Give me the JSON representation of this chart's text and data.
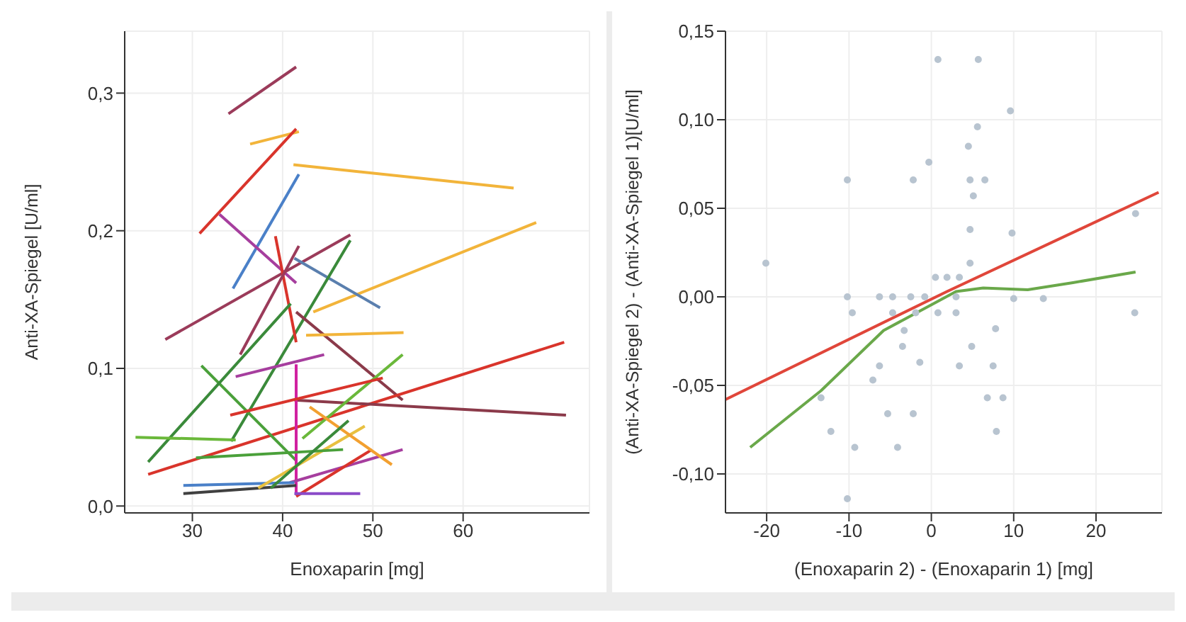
{
  "chart_data": [
    {
      "type": "line",
      "xlabel": "Enoxaparin [mg]",
      "ylabel": "Anti-XA-Spiegel [U/ml]",
      "xlim": [
        22.5,
        74
      ],
      "xticks": [
        30,
        40,
        50,
        60
      ],
      "ylim": [
        -0.005,
        0.345
      ],
      "yticks": [
        {
          "value": 0,
          "label": "0,0"
        },
        {
          "value": 0.1,
          "label": "0,1"
        },
        {
          "value": 0.2,
          "label": "0,2"
        },
        {
          "value": 0.3,
          "label": "0,3"
        }
      ],
      "grid": true,
      "series": [
        {
          "color": "#9b3b5a",
          "x": [
            34.0,
            41.5
          ],
          "values": [
            0.285,
            0.319
          ]
        },
        {
          "color": "#f2b43a",
          "x": [
            36.4,
            41.8
          ],
          "values": [
            0.263,
            0.272
          ]
        },
        {
          "color": "#d9342b",
          "x": [
            30.8,
            41.5
          ],
          "values": [
            0.198,
            0.274
          ]
        },
        {
          "color": "#f2b43a",
          "x": [
            41.2,
            65.6
          ],
          "values": [
            0.248,
            0.231
          ]
        },
        {
          "color": "#4a80c8",
          "x": [
            34.5,
            41.8
          ],
          "values": [
            0.158,
            0.241
          ]
        },
        {
          "color": "#a63e9e",
          "x": [
            33.0,
            41.5
          ],
          "values": [
            0.212,
            0.162
          ]
        },
        {
          "color": "#9b3b5a",
          "x": [
            27.0,
            47.5
          ],
          "values": [
            0.121,
            0.197
          ]
        },
        {
          "color": "#f2b43a",
          "x": [
            43.4,
            68.1
          ],
          "values": [
            0.141,
            0.206
          ]
        },
        {
          "color": "#5a7fae",
          "x": [
            41.3,
            50.8
          ],
          "values": [
            0.18,
            0.144
          ]
        },
        {
          "color": "#3a8a3a",
          "x": [
            34.3,
            47.5
          ],
          "values": [
            0.047,
            0.193
          ]
        },
        {
          "color": "#d9342b",
          "x": [
            39.2,
            41.5
          ],
          "values": [
            0.196,
            0.119
          ]
        },
        {
          "color": "#9b3b5a",
          "x": [
            35.3,
            41.8
          ],
          "values": [
            0.11,
            0.189
          ]
        },
        {
          "color": "#8b3a4a",
          "x": [
            41.5,
            53.3
          ],
          "values": [
            0.141,
            0.077
          ]
        },
        {
          "color": "#d9342b",
          "x": [
            25.1,
            71.2
          ],
          "values": [
            0.023,
            0.119
          ]
        },
        {
          "color": "#8b3a4a",
          "x": [
            41.3,
            71.4
          ],
          "values": [
            0.077,
            0.066
          ]
        },
        {
          "color": "#4aa03a",
          "x": [
            31.0,
            41.5
          ],
          "values": [
            0.102,
            0.033
          ]
        },
        {
          "color": "#f2b43a",
          "x": [
            42.6,
            53.4
          ],
          "values": [
            0.124,
            0.126
          ]
        },
        {
          "color": "#3a8a3a",
          "x": [
            25.1,
            40.9
          ],
          "values": [
            0.032,
            0.147
          ]
        },
        {
          "color": "#6ab83a",
          "x": [
            42.2,
            53.3
          ],
          "values": [
            0.049,
            0.11
          ]
        },
        {
          "color": "#6ab83a",
          "x": [
            23.7,
            34.8
          ],
          "values": [
            0.05,
            0.048
          ]
        },
        {
          "color": "#a63e9e",
          "x": [
            34.8,
            44.6
          ],
          "values": [
            0.094,
            0.11
          ]
        },
        {
          "color": "#d020a0",
          "x": [
            41.5,
            41.5
          ],
          "values": [
            0.103,
            0.008
          ]
        },
        {
          "color": "#a63e9e",
          "x": [
            40.8,
            53.3
          ],
          "values": [
            0.017,
            0.041
          ]
        },
        {
          "color": "#d9342b",
          "x": [
            41.5,
            49.9
          ],
          "values": [
            0.007,
            0.041
          ]
        },
        {
          "color": "#404040",
          "x": [
            29.0,
            41.5
          ],
          "values": [
            0.009,
            0.015
          ]
        },
        {
          "color": "#4a80c8",
          "x": [
            29.0,
            41.3
          ],
          "values": [
            0.015,
            0.017
          ]
        },
        {
          "color": "#8a4ac8",
          "x": [
            41.3,
            48.6
          ],
          "values": [
            0.009,
            0.009
          ]
        },
        {
          "color": "#e8c040",
          "x": [
            37.3,
            49.1
          ],
          "values": [
            0.013,
            0.058
          ]
        },
        {
          "color": "#4aa03a",
          "x": [
            30.4,
            46.7
          ],
          "values": [
            0.035,
            0.041
          ]
        },
        {
          "color": "#d9342b",
          "x": [
            34.2,
            51.1
          ],
          "values": [
            0.066,
            0.093
          ]
        },
        {
          "color": "#f2a030",
          "x": [
            43.0,
            52.1
          ],
          "values": [
            0.072,
            0.03
          ]
        },
        {
          "color": "#3a8a3a",
          "x": [
            38.7,
            47.3
          ],
          "values": [
            0.013,
            0.062
          ]
        }
      ]
    },
    {
      "type": "scatter",
      "xlabel": "(Enoxaparin 2) - (Enoxaparin 1) [mg]",
      "ylabel": "(Anti-XA-Spiegel 2) - (Anti-XA-Spiegel 1)[U/ml]",
      "xlim": [
        -25,
        28
      ],
      "xticks": [
        -20,
        -10,
        0,
        10,
        20
      ],
      "ylim": [
        -0.122,
        0.15
      ],
      "yticks": [
        {
          "value": -0.1,
          "label": "-0,10"
        },
        {
          "value": -0.05,
          "label": "-0,05"
        },
        {
          "value": 0,
          "label": "0,00"
        },
        {
          "value": 0.05,
          "label": "0,05"
        },
        {
          "value": 0.1,
          "label": "0,10"
        },
        {
          "value": 0.15,
          "label": "0,15"
        }
      ],
      "grid": true,
      "series": [
        {
          "color": "#b8c4d0",
          "x": [
            -20.1,
            -10.2,
            -10.2,
            -2.2,
            0.8,
            5.7,
            9.6,
            5.6,
            4.5,
            -0.3,
            4.7,
            6.5,
            5.1,
            4.7,
            9.8,
            4.7,
            0.5,
            1.9,
            3.4,
            -6.3,
            -4.7,
            -2.5,
            -0.8,
            3.0,
            10.0,
            13.6,
            -9.6,
            -4.7,
            -1.9,
            0.8,
            3.0,
            24.7,
            24.8,
            -3.3,
            7.8,
            -3.5,
            4.9,
            -6.3,
            -1.4,
            3.4,
            7.5,
            -7.1,
            -13.4,
            6.8,
            8.7,
            -5.3,
            -2.2,
            -12.2,
            7.9,
            -9.3,
            -4.1,
            -10.2
          ],
          "values": [
            0.019,
            0.066,
            0,
            0.066,
            0.134,
            0.134,
            0.105,
            0.096,
            0.085,
            0.076,
            0.066,
            0.066,
            0.057,
            0.038,
            0.036,
            0.019,
            0.011,
            0.011,
            0.011,
            0,
            0,
            0,
            0,
            0,
            -0.001,
            -0.001,
            -0.009,
            -0.009,
            -0.009,
            -0.009,
            -0.009,
            -0.009,
            0.047,
            -0.019,
            -0.018,
            -0.028,
            -0.028,
            -0.039,
            -0.037,
            -0.039,
            -0.039,
            -0.047,
            -0.057,
            -0.057,
            -0.057,
            -0.066,
            -0.066,
            -0.076,
            -0.076,
            -0.085,
            -0.085,
            -0.114
          ]
        },
        {
          "type": "line",
          "color": "#e0463a",
          "x": [
            -25,
            1.9,
            27.6
          ],
          "values": [
            -0.058,
            0.003,
            0.059
          ]
        },
        {
          "type": "line",
          "color": "#6aa84a",
          "x": [
            -22.0,
            -13.4,
            -5.8,
            3.0,
            6.3,
            11.7,
            17.2,
            24.8
          ],
          "values": [
            -0.085,
            -0.053,
            -0.019,
            0.003,
            0.005,
            0.004,
            0.008,
            0.014
          ]
        }
      ]
    }
  ]
}
